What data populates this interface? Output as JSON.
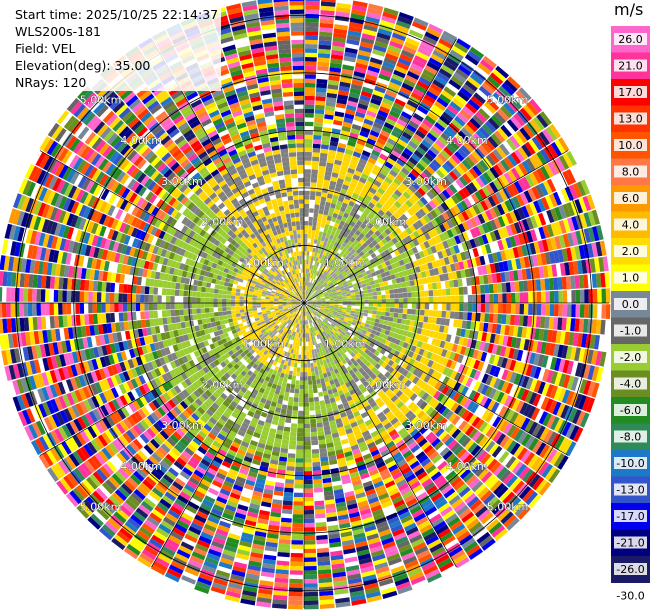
{
  "info": {
    "start_time": "Start time: 2025/10/25 22:14:37",
    "instrument": "WLS200s-181",
    "field": "Field: VEL",
    "elevation": "Elevation(deg): 35.00",
    "nrays": "NRays: 120"
  },
  "chart_data": {
    "type": "heatmap",
    "projection": "polar-ppi",
    "field": "VEL",
    "units": "m/s",
    "n_rays": 120,
    "elevation_deg": 35.0,
    "range_rings": [
      {
        "label": "1.00km",
        "km": 1
      },
      {
        "label": "2.00km",
        "km": 2
      },
      {
        "label": "3.00km",
        "km": 3
      },
      {
        "label": "4.00km",
        "km": 4
      },
      {
        "label": "5.00km",
        "km": 5
      }
    ],
    "max_range_km": 5.3,
    "colorbar": {
      "unit_label": "m/s",
      "ticks": [
        "26.0",
        "21.0",
        "17.0",
        "13.0",
        "10.0",
        "8.0",
        "6.0",
        "4.0",
        "2.0",
        "1.0",
        "0.0",
        "-1.0",
        "-2.0",
        "-4.0",
        "-6.0",
        "-8.0",
        "-10.0",
        "-13.0",
        "-17.0",
        "-21.0",
        "-26.0",
        "-30.0"
      ],
      "colors": [
        "#ff66cc",
        "#ff3399",
        "#ff0000",
        "#ff3300",
        "#ff5500",
        "#ff7744",
        "#ff9900",
        "#ffbb00",
        "#ffdd00",
        "#ffff00",
        "#778899",
        "#666666",
        "#99cc33",
        "#6b8e23",
        "#228b22",
        "#2e8b57",
        "#1e78c8",
        "#3355cc",
        "#0000ee",
        "#000080",
        "#1a1a66"
      ]
    },
    "field_description": {
      "inner_zone_km": [
        0,
        1.3
      ],
      "inner_colors": [
        "#ffd700",
        "#999999",
        "#9acd32"
      ],
      "mid_zone_km": [
        1.3,
        2.7
      ],
      "mid_colors": [
        "#9acd32",
        "#6b8e23",
        "#ffd700",
        "#808080"
      ],
      "noise_zone_km": [
        2.7,
        5.3
      ]
    }
  }
}
